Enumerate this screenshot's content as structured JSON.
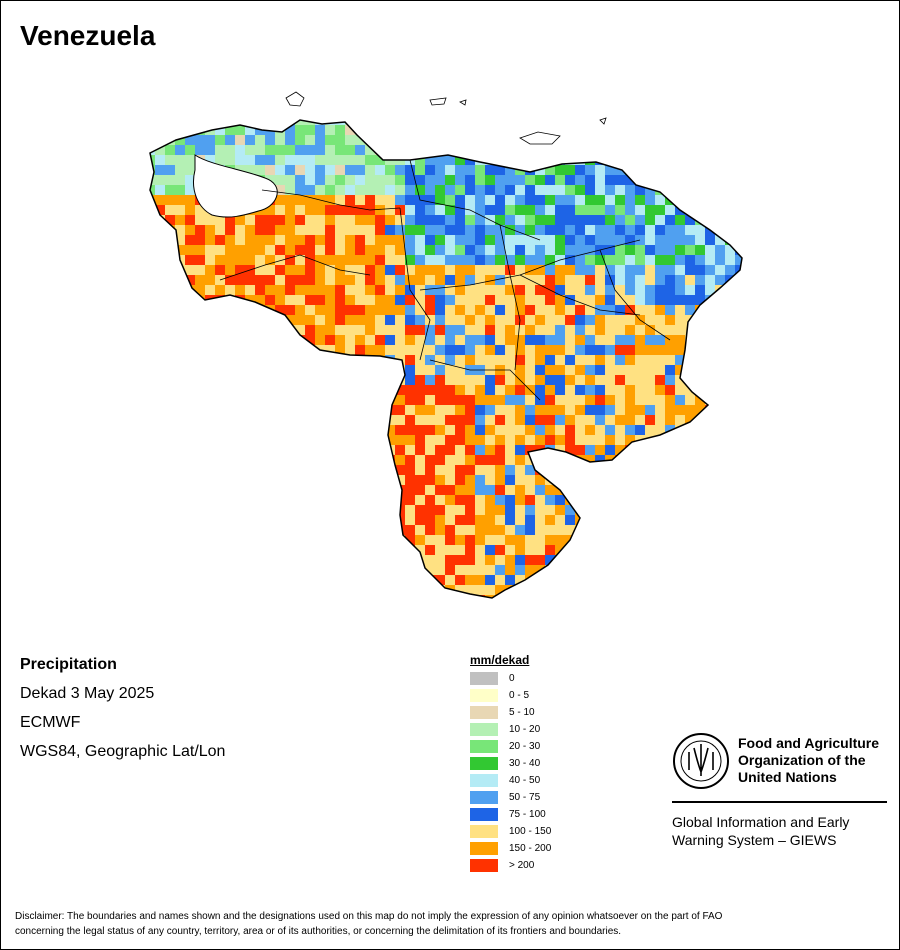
{
  "map": {
    "title": "Venezuela",
    "variable": "Precipitation",
    "period": "Dekad 3 May 2025",
    "source": "ECMWF",
    "projection": "WGS84, Geographic Lat/Lon"
  },
  "legend": {
    "unit": "mm/dekad",
    "classes": [
      {
        "label": "0",
        "color": "#c0c0c0"
      },
      {
        "label": "0 - 5",
        "color": "#ffffc8"
      },
      {
        "label": "5 - 10",
        "color": "#e8d7b4"
      },
      {
        "label": "10 - 20",
        "color": "#b4f0b4"
      },
      {
        "label": "20 - 30",
        "color": "#78e678"
      },
      {
        "label": "30 - 40",
        "color": "#32c832"
      },
      {
        "label": "40 - 50",
        "color": "#b4ebf5"
      },
      {
        "label": "50 - 75",
        "color": "#50a0f0"
      },
      {
        "label": "75 - 100",
        "color": "#1e64e6"
      },
      {
        "label": "100 - 150",
        "color": "#ffe182"
      },
      {
        "label": "150 - 200",
        "color": "#ffa000"
      },
      {
        "label": "> 200",
        "color": "#ff3200"
      }
    ]
  },
  "org": {
    "name_lines": [
      "Food and Agriculture",
      "Organization of the",
      "United Nations"
    ],
    "emblem_text": "FIAT PANIS",
    "system_lines": [
      "Global Information and Early",
      "Warning System – GIEWS"
    ]
  },
  "disclaimer_lines": [
    "Disclaimer: The boundaries and names shown and the designations used on this map do not imply the expression of any opinion whatsoever on the part of FAO",
    "concerning the legal status of any country, territory, area or of its authorities, or concerning the delimitation of its frontiers and boundaries."
  ]
}
